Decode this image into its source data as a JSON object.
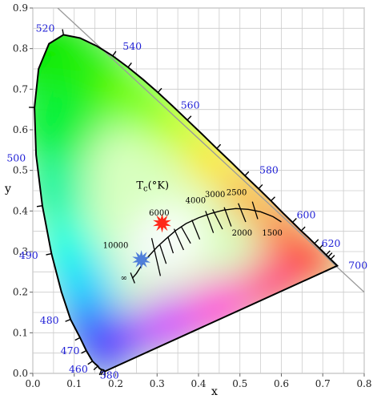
{
  "chart_data": {
    "type": "scatter",
    "title": "",
    "xlabel": "x",
    "ylabel": "y",
    "xlim": [
      0.0,
      0.8
    ],
    "ylim": [
      0.0,
      0.9
    ],
    "x_ticks": [
      {
        "value": 0.0,
        "label": "0.0"
      },
      {
        "value": 0.1,
        "label": "0.1"
      },
      {
        "value": 0.2,
        "label": "0.2"
      },
      {
        "value": 0.3,
        "label": "0.3"
      },
      {
        "value": 0.4,
        "label": "0.4"
      },
      {
        "value": 0.5,
        "label": "0.5"
      },
      {
        "value": 0.6,
        "label": "0.6"
      },
      {
        "value": 0.7,
        "label": "0.7"
      },
      {
        "value": 0.8,
        "label": "0.8"
      }
    ],
    "y_ticks": [
      {
        "value": 0.0,
        "label": "0.0"
      },
      {
        "value": 0.1,
        "label": "0.1"
      },
      {
        "value": 0.2,
        "label": "0.2"
      },
      {
        "value": 0.3,
        "label": "0.3"
      },
      {
        "value": 0.4,
        "label": "0.4"
      },
      {
        "value": 0.5,
        "label": "0.5"
      },
      {
        "value": 0.6,
        "label": "0.6"
      },
      {
        "value": 0.7,
        "label": "0.7"
      },
      {
        "value": 0.8,
        "label": "0.8"
      },
      {
        "value": 0.9,
        "label": "0.9"
      }
    ],
    "grid": true,
    "spectral_locus": [
      [
        0.174,
        0.005
      ],
      [
        0.173,
        0.005
      ],
      [
        0.171,
        0.008
      ],
      [
        0.166,
        0.009
      ],
      [
        0.161,
        0.012
      ],
      [
        0.157,
        0.018
      ],
      [
        0.151,
        0.023
      ],
      [
        0.144,
        0.03
      ],
      [
        0.129,
        0.056
      ],
      [
        0.114,
        0.088
      ],
      [
        0.091,
        0.133
      ],
      [
        0.069,
        0.201
      ],
      [
        0.045,
        0.295
      ],
      [
        0.023,
        0.413
      ],
      [
        0.008,
        0.538
      ],
      [
        0.004,
        0.655
      ],
      [
        0.014,
        0.75
      ],
      [
        0.039,
        0.812
      ],
      [
        0.074,
        0.834
      ],
      [
        0.114,
        0.826
      ],
      [
        0.155,
        0.806
      ],
      [
        0.193,
        0.782
      ],
      [
        0.23,
        0.754
      ],
      [
        0.266,
        0.724
      ],
      [
        0.302,
        0.692
      ],
      [
        0.337,
        0.659
      ],
      [
        0.373,
        0.624
      ],
      [
        0.409,
        0.589
      ],
      [
        0.444,
        0.554
      ],
      [
        0.479,
        0.52
      ],
      [
        0.512,
        0.487
      ],
      [
        0.545,
        0.455
      ],
      [
        0.575,
        0.425
      ],
      [
        0.603,
        0.396
      ],
      [
        0.627,
        0.372
      ],
      [
        0.648,
        0.351
      ],
      [
        0.666,
        0.334
      ],
      [
        0.68,
        0.32
      ],
      [
        0.692,
        0.308
      ],
      [
        0.701,
        0.299
      ],
      [
        0.708,
        0.292
      ],
      [
        0.713,
        0.287
      ],
      [
        0.717,
        0.283
      ],
      [
        0.719,
        0.281
      ],
      [
        0.735,
        0.265
      ]
    ],
    "spectral_ticks": [
      [
        0.174,
        0.005
      ],
      [
        0.171,
        0.008
      ],
      [
        0.166,
        0.009
      ],
      [
        0.157,
        0.018
      ],
      [
        0.144,
        0.03
      ],
      [
        0.129,
        0.056
      ],
      [
        0.114,
        0.088
      ],
      [
        0.091,
        0.133
      ],
      [
        0.045,
        0.295
      ],
      [
        0.023,
        0.413
      ],
      [
        0.004,
        0.655
      ],
      [
        0.074,
        0.834
      ],
      [
        0.193,
        0.782
      ],
      [
        0.23,
        0.754
      ],
      [
        0.302,
        0.692
      ],
      [
        0.373,
        0.624
      ],
      [
        0.444,
        0.554
      ],
      [
        0.512,
        0.487
      ],
      [
        0.545,
        0.455
      ],
      [
        0.575,
        0.425
      ],
      [
        0.627,
        0.372
      ],
      [
        0.648,
        0.351
      ],
      [
        0.68,
        0.32
      ],
      [
        0.692,
        0.308
      ],
      [
        0.708,
        0.292
      ],
      [
        0.713,
        0.287
      ],
      [
        0.719,
        0.281
      ]
    ],
    "wavelength_labels": [
      {
        "label": "380",
        "x": 0.185,
        "y": -0.005
      },
      {
        "label": "460",
        "x": 0.11,
        "y": 0.01
      },
      {
        "label": "470",
        "x": 0.09,
        "y": 0.055
      },
      {
        "label": "480",
        "x": 0.04,
        "y": 0.13
      },
      {
        "label": "490",
        "x": -0.01,
        "y": 0.29
      },
      {
        "label": "500",
        "x": -0.04,
        "y": 0.53
      },
      {
        "label": "520",
        "x": 0.03,
        "y": 0.85
      },
      {
        "label": "540",
        "x": 0.24,
        "y": 0.805
      },
      {
        "label": "560",
        "x": 0.38,
        "y": 0.66
      },
      {
        "label": "580",
        "x": 0.57,
        "y": 0.5
      },
      {
        "label": "600",
        "x": 0.66,
        "y": 0.39
      },
      {
        "label": "620",
        "x": 0.72,
        "y": 0.32
      },
      {
        "label": "700",
        "x": 0.785,
        "y": 0.265
      }
    ],
    "diagonal": [
      [
        0.06,
        0.9
      ],
      [
        0.8,
        0.2
      ]
    ],
    "planckian_locus": [
      [
        0.24,
        0.234
      ],
      [
        0.25,
        0.246
      ],
      [
        0.26,
        0.262
      ],
      [
        0.27,
        0.277
      ],
      [
        0.28,
        0.289
      ],
      [
        0.3,
        0.311
      ],
      [
        0.32,
        0.33
      ],
      [
        0.345,
        0.352
      ],
      [
        0.37,
        0.369
      ],
      [
        0.4,
        0.383
      ],
      [
        0.43,
        0.394
      ],
      [
        0.46,
        0.402
      ],
      [
        0.49,
        0.406
      ],
      [
        0.52,
        0.404
      ],
      [
        0.55,
        0.398
      ],
      [
        0.58,
        0.386
      ],
      [
        0.6,
        0.373
      ]
    ],
    "isotherms": [
      [
        [
          0.236,
          0.248
        ],
        [
          0.246,
          0.222
        ]
      ],
      [
        [
          0.287,
          0.333
        ],
        [
          0.308,
          0.24
        ]
      ],
      [
        [
          0.307,
          0.316
        ],
        [
          0.322,
          0.27
        ]
      ],
      [
        [
          0.326,
          0.337
        ],
        [
          0.339,
          0.296
        ]
      ],
      [
        [
          0.341,
          0.356
        ],
        [
          0.364,
          0.304
        ]
      ],
      [
        [
          0.358,
          0.362
        ],
        [
          0.381,
          0.32
        ]
      ],
      [
        [
          0.384,
          0.378
        ],
        [
          0.403,
          0.33
        ]
      ],
      [
        [
          0.417,
          0.4
        ],
        [
          0.436,
          0.346
        ]
      ],
      [
        [
          0.434,
          0.404
        ],
        [
          0.458,
          0.355
        ]
      ],
      [
        [
          0.462,
          0.409
        ],
        [
          0.479,
          0.362
        ]
      ],
      [
        [
          0.496,
          0.419
        ],
        [
          0.514,
          0.373
        ]
      ],
      [
        [
          0.53,
          0.423
        ],
        [
          0.543,
          0.38
        ]
      ]
    ],
    "temperature_labels": [
      {
        "label": "∞",
        "x": 0.22,
        "y": 0.235
      },
      {
        "label": "10000",
        "x": 0.2,
        "y": 0.315
      },
      {
        "label": "6000",
        "x": 0.305,
        "y": 0.395
      },
      {
        "label": "4000",
        "x": 0.393,
        "y": 0.425
      },
      {
        "label": "3000",
        "x": 0.44,
        "y": 0.44
      },
      {
        "label": "2500",
        "x": 0.492,
        "y": 0.445
      },
      {
        "label": "2000",
        "x": 0.505,
        "y": 0.345
      },
      {
        "label": "1500",
        "x": 0.578,
        "y": 0.345
      }
    ],
    "tc_label": {
      "main": "T",
      "sub": "c",
      "suffix": "(°K)",
      "x": 0.25,
      "y": 0.455
    },
    "markers": [
      {
        "shape": "star",
        "color": "#ff2a1a",
        "x": 0.312,
        "y": 0.37
      },
      {
        "shape": "star",
        "color": "#4f7fd9",
        "x": 0.262,
        "y": 0.28
      }
    ]
  }
}
